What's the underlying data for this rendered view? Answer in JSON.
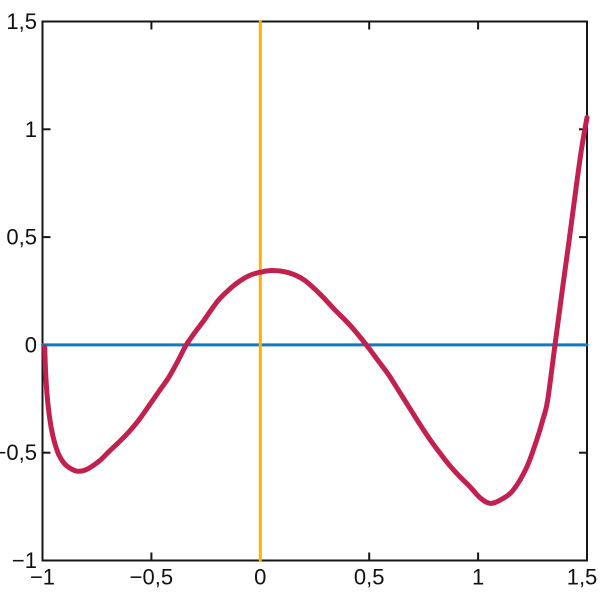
{
  "figure": {
    "background": "#ffffff",
    "axis_color": "#161616",
    "tick_label_color": "#111111"
  },
  "chart_data": {
    "type": "line",
    "title": "",
    "xlabel": "",
    "ylabel": "",
    "xlim": [
      -1,
      1.5
    ],
    "ylim": [
      -1,
      1.5
    ],
    "x_ticks": [
      -1,
      -0.5,
      0,
      0.5,
      1,
      1.5
    ],
    "x_tick_labels": [
      "−1",
      "−0,5",
      "0",
      "0,5",
      "1",
      "1,5"
    ],
    "y_ticks": [
      -1,
      -0.5,
      0,
      0.5,
      1,
      1.5
    ],
    "y_tick_labels": [
      "−1",
      "−0,5",
      "0",
      "0,5",
      "1",
      "1,5"
    ],
    "grid": false,
    "frame": "box-with-inward-ticks-all-sides",
    "legend": null,
    "series": [
      {
        "name": "horizontal-line-y0",
        "type": "straight",
        "color": "#1179BD",
        "width": 3,
        "points": [
          [
            -1,
            0
          ],
          [
            1.5,
            0
          ]
        ]
      },
      {
        "name": "vertical-line-x0",
        "type": "straight",
        "color": "#FFB000",
        "width": 3,
        "points": [
          [
            0,
            -1
          ],
          [
            0,
            1.5
          ]
        ]
      },
      {
        "name": "function-curve",
        "type": "curve",
        "color": "#C2204E",
        "width": 5,
        "smooth": true,
        "key_features": {
          "left_minimum": [
            -0.85,
            -0.585
          ],
          "local_maximum": [
            0.055,
            0.345
          ],
          "right_minimum": [
            1.055,
            -0.735
          ],
          "zeros": [
            -0.99,
            -0.34,
            0.487,
            1.353
          ],
          "left_end": [
            -0.99,
            -0.01
          ],
          "right_end": [
            1.5,
            1.055
          ]
        },
        "points": [
          [
            -0.99,
            -0.01
          ],
          [
            -0.986,
            -0.12
          ],
          [
            -0.98,
            -0.22
          ],
          [
            -0.971,
            -0.31
          ],
          [
            -0.959,
            -0.39
          ],
          [
            -0.944,
            -0.455
          ],
          [
            -0.925,
            -0.51
          ],
          [
            -0.9,
            -0.55
          ],
          [
            -0.873,
            -0.572
          ],
          [
            -0.845,
            -0.585
          ],
          [
            -0.815,
            -0.584
          ],
          [
            -0.78,
            -0.568
          ],
          [
            -0.735,
            -0.535
          ],
          [
            -0.69,
            -0.49
          ],
          [
            -0.645,
            -0.447
          ],
          [
            -0.6,
            -0.4
          ],
          [
            -0.555,
            -0.345
          ],
          [
            -0.51,
            -0.28
          ],
          [
            -0.465,
            -0.215
          ],
          [
            -0.42,
            -0.15
          ],
          [
            -0.38,
            -0.078
          ],
          [
            -0.34,
            0.0
          ],
          [
            -0.3,
            0.058
          ],
          [
            -0.26,
            0.112
          ],
          [
            -0.225,
            0.163
          ],
          [
            -0.19,
            0.21
          ],
          [
            -0.145,
            0.255
          ],
          [
            -0.1,
            0.292
          ],
          [
            -0.05,
            0.322
          ],
          [
            0.0,
            0.337
          ],
          [
            0.055,
            0.345
          ],
          [
            0.13,
            0.335
          ],
          [
            0.2,
            0.302
          ],
          [
            0.27,
            0.24
          ],
          [
            0.34,
            0.165
          ],
          [
            0.415,
            0.088
          ],
          [
            0.487,
            0.0
          ],
          [
            0.54,
            -0.072
          ],
          [
            0.59,
            -0.14
          ],
          [
            0.64,
            -0.22
          ],
          [
            0.69,
            -0.3
          ],
          [
            0.735,
            -0.372
          ],
          [
            0.78,
            -0.44
          ],
          [
            0.825,
            -0.502
          ],
          [
            0.87,
            -0.56
          ],
          [
            0.915,
            -0.61
          ],
          [
            0.96,
            -0.655
          ],
          [
            1.01,
            -0.71
          ],
          [
            1.055,
            -0.735
          ],
          [
            1.105,
            -0.718
          ],
          [
            1.16,
            -0.675
          ],
          [
            1.222,
            -0.57
          ],
          [
            1.268,
            -0.444
          ],
          [
            1.296,
            -0.351
          ],
          [
            1.319,
            -0.258
          ],
          [
            1.353,
            0.0
          ],
          [
            1.39,
            0.28
          ],
          [
            1.42,
            0.5
          ],
          [
            1.45,
            0.73
          ],
          [
            1.475,
            0.91
          ],
          [
            1.5,
            1.055
          ]
        ]
      }
    ]
  }
}
